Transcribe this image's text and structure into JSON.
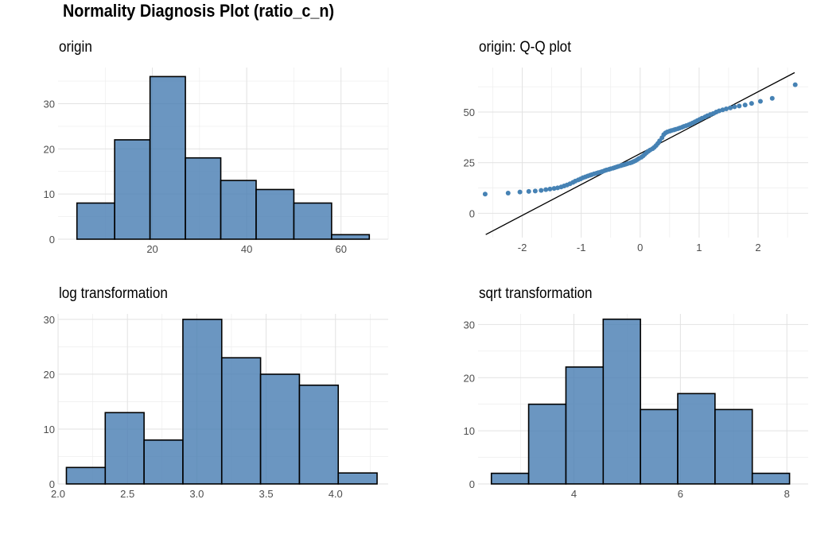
{
  "title": "Normality Diagnosis Plot (ratio_c_n)",
  "colors": {
    "fill": "#4a7fb3",
    "fill_opacity": 0.82,
    "stroke": "#000000",
    "grid": "#ebebeb",
    "point": "#4682b4"
  },
  "chart_data": [
    {
      "id": "origin",
      "type": "bar",
      "title": "origin",
      "bins": [
        [
          4,
          12
        ],
        [
          12,
          19.5
        ],
        [
          19.5,
          27
        ],
        [
          27,
          34.5
        ],
        [
          34.5,
          42
        ],
        [
          42,
          50
        ],
        [
          50,
          58
        ],
        [
          58,
          66
        ]
      ],
      "values": [
        8,
        22,
        36,
        18,
        13,
        11,
        8,
        1
      ],
      "xlim": [
        0,
        70
      ],
      "ylim": [
        0,
        38
      ],
      "xticks": [
        20,
        40,
        60
      ],
      "xtick_labels": [
        "20",
        "40",
        "60"
      ],
      "yticks": [
        0,
        10,
        20,
        30
      ],
      "ytick_labels": [
        "0",
        "10",
        "20",
        "30"
      ],
      "xlabel": "",
      "ylabel": "",
      "grid": true
    },
    {
      "id": "qq",
      "type": "scatter",
      "title": "origin: Q-Q plot",
      "xlim": [
        -2.75,
        2.85
      ],
      "ylim": [
        -12,
        72
      ],
      "xticks": [
        -2,
        -1,
        0,
        1,
        2
      ],
      "xtick_labels": [
        "-2",
        "-1",
        "0",
        "1",
        "2"
      ],
      "yticks": [
        0,
        25,
        50
      ],
      "ytick_labels": [
        "0",
        "25",
        "50"
      ],
      "xlabel": "",
      "ylabel": "",
      "grid": true,
      "reference_line": [
        [
          -2.62,
          -10.5
        ],
        [
          2.62,
          69.5
        ]
      ],
      "x": [
        -2.63,
        -2.24,
        -2.04,
        -1.89,
        -1.78,
        -1.68,
        -1.6,
        -1.53,
        -1.46,
        -1.4,
        -1.34,
        -1.29,
        -1.24,
        -1.19,
        -1.14,
        -1.1,
        -1.05,
        -1.01,
        -0.97,
        -0.93,
        -0.89,
        -0.85,
        -0.82,
        -0.78,
        -0.74,
        -0.71,
        -0.67,
        -0.64,
        -0.6,
        -0.57,
        -0.53,
        -0.5,
        -0.46,
        -0.43,
        -0.4,
        -0.37,
        -0.33,
        -0.3,
        -0.27,
        -0.24,
        -0.21,
        -0.17,
        -0.14,
        -0.11,
        -0.08,
        -0.05,
        -0.02,
        0.02,
        0.05,
        0.08,
        0.11,
        0.14,
        0.17,
        0.21,
        0.24,
        0.27,
        0.3,
        0.33,
        0.37,
        0.4,
        0.43,
        0.46,
        0.5,
        0.53,
        0.57,
        0.6,
        0.64,
        0.67,
        0.71,
        0.74,
        0.78,
        0.82,
        0.85,
        0.89,
        0.93,
        0.97,
        1.01,
        1.05,
        1.1,
        1.14,
        1.19,
        1.24,
        1.29,
        1.34,
        1.4,
        1.46,
        1.53,
        1.6,
        1.68,
        1.78,
        1.89,
        2.04,
        2.24,
        2.63
      ],
      "y": [
        9.5,
        10,
        10.5,
        10.8,
        11,
        11.3,
        11.7,
        12,
        12.3,
        12.6,
        13,
        13.5,
        14,
        14.6,
        15.3,
        15.9,
        16.5,
        17,
        17.6,
        18,
        18.4,
        18.8,
        19.1,
        19.5,
        19.8,
        20.1,
        20.4,
        20.7,
        21.1,
        21.4,
        21.7,
        22,
        22.3,
        22.6,
        22.9,
        23.2,
        23.5,
        23.8,
        24,
        24.3,
        24.6,
        24.9,
        25.2,
        25.6,
        26,
        26.5,
        27.1,
        27.7,
        28.4,
        29.2,
        30,
        30.7,
        31.3,
        31.9,
        32.6,
        33.5,
        34.5,
        35.8,
        37.3,
        38.9,
        39.7,
        40.2,
        40.6,
        40.9,
        41.2,
        41.5,
        41.8,
        42.1,
        42.5,
        42.9,
        43.3,
        43.7,
        44.1,
        44.6,
        45.2,
        45.8,
        46.4,
        47,
        47.6,
        48.2,
        48.8,
        49.3,
        50,
        50.6,
        51.1,
        51.6,
        52.1,
        52.6,
        53,
        53.5,
        54.3,
        55.3,
        56.8,
        63.5
      ]
    },
    {
      "id": "log",
      "type": "bar",
      "title": "log transformation",
      "bins": [
        [
          2.06,
          2.34
        ],
        [
          2.34,
          2.62
        ],
        [
          2.62,
          2.9
        ],
        [
          2.9,
          3.18
        ],
        [
          3.18,
          3.46
        ],
        [
          3.46,
          3.74
        ],
        [
          3.74,
          4.02
        ],
        [
          4.02,
          4.3
        ]
      ],
      "values": [
        3,
        13,
        8,
        30,
        23,
        20,
        18,
        2
      ],
      "xlim": [
        2.0,
        4.38
      ],
      "ylim": [
        0,
        31
      ],
      "xticks": [
        2.0,
        2.5,
        3.0,
        3.5,
        4.0
      ],
      "xtick_labels": [
        "2.0",
        "2.5",
        "3.0",
        "3.5",
        "4.0"
      ],
      "yticks": [
        0,
        10,
        20,
        30
      ],
      "ytick_labels": [
        "0",
        "10",
        "20",
        "30"
      ],
      "xlabel": "",
      "ylabel": "",
      "grid": true
    },
    {
      "id": "sqrt",
      "type": "bar",
      "title": "sqrt transformation",
      "bins": [
        [
          2.45,
          3.15
        ],
        [
          3.15,
          3.85
        ],
        [
          3.85,
          4.55
        ],
        [
          4.55,
          5.25
        ],
        [
          5.25,
          5.95
        ],
        [
          5.95,
          6.65
        ],
        [
          6.65,
          7.35
        ],
        [
          7.35,
          8.05
        ]
      ],
      "values": [
        2,
        15,
        22,
        31,
        14,
        17,
        14,
        2
      ],
      "xlim": [
        2.2,
        8.4
      ],
      "ylim": [
        0,
        32
      ],
      "xticks": [
        4,
        6,
        8
      ],
      "xtick_labels": [
        "4",
        "6",
        "8"
      ],
      "yticks": [
        0,
        10,
        20,
        30
      ],
      "ytick_labels": [
        "0",
        "10",
        "20",
        "30"
      ],
      "xlabel": "",
      "ylabel": "",
      "grid": true
    }
  ]
}
